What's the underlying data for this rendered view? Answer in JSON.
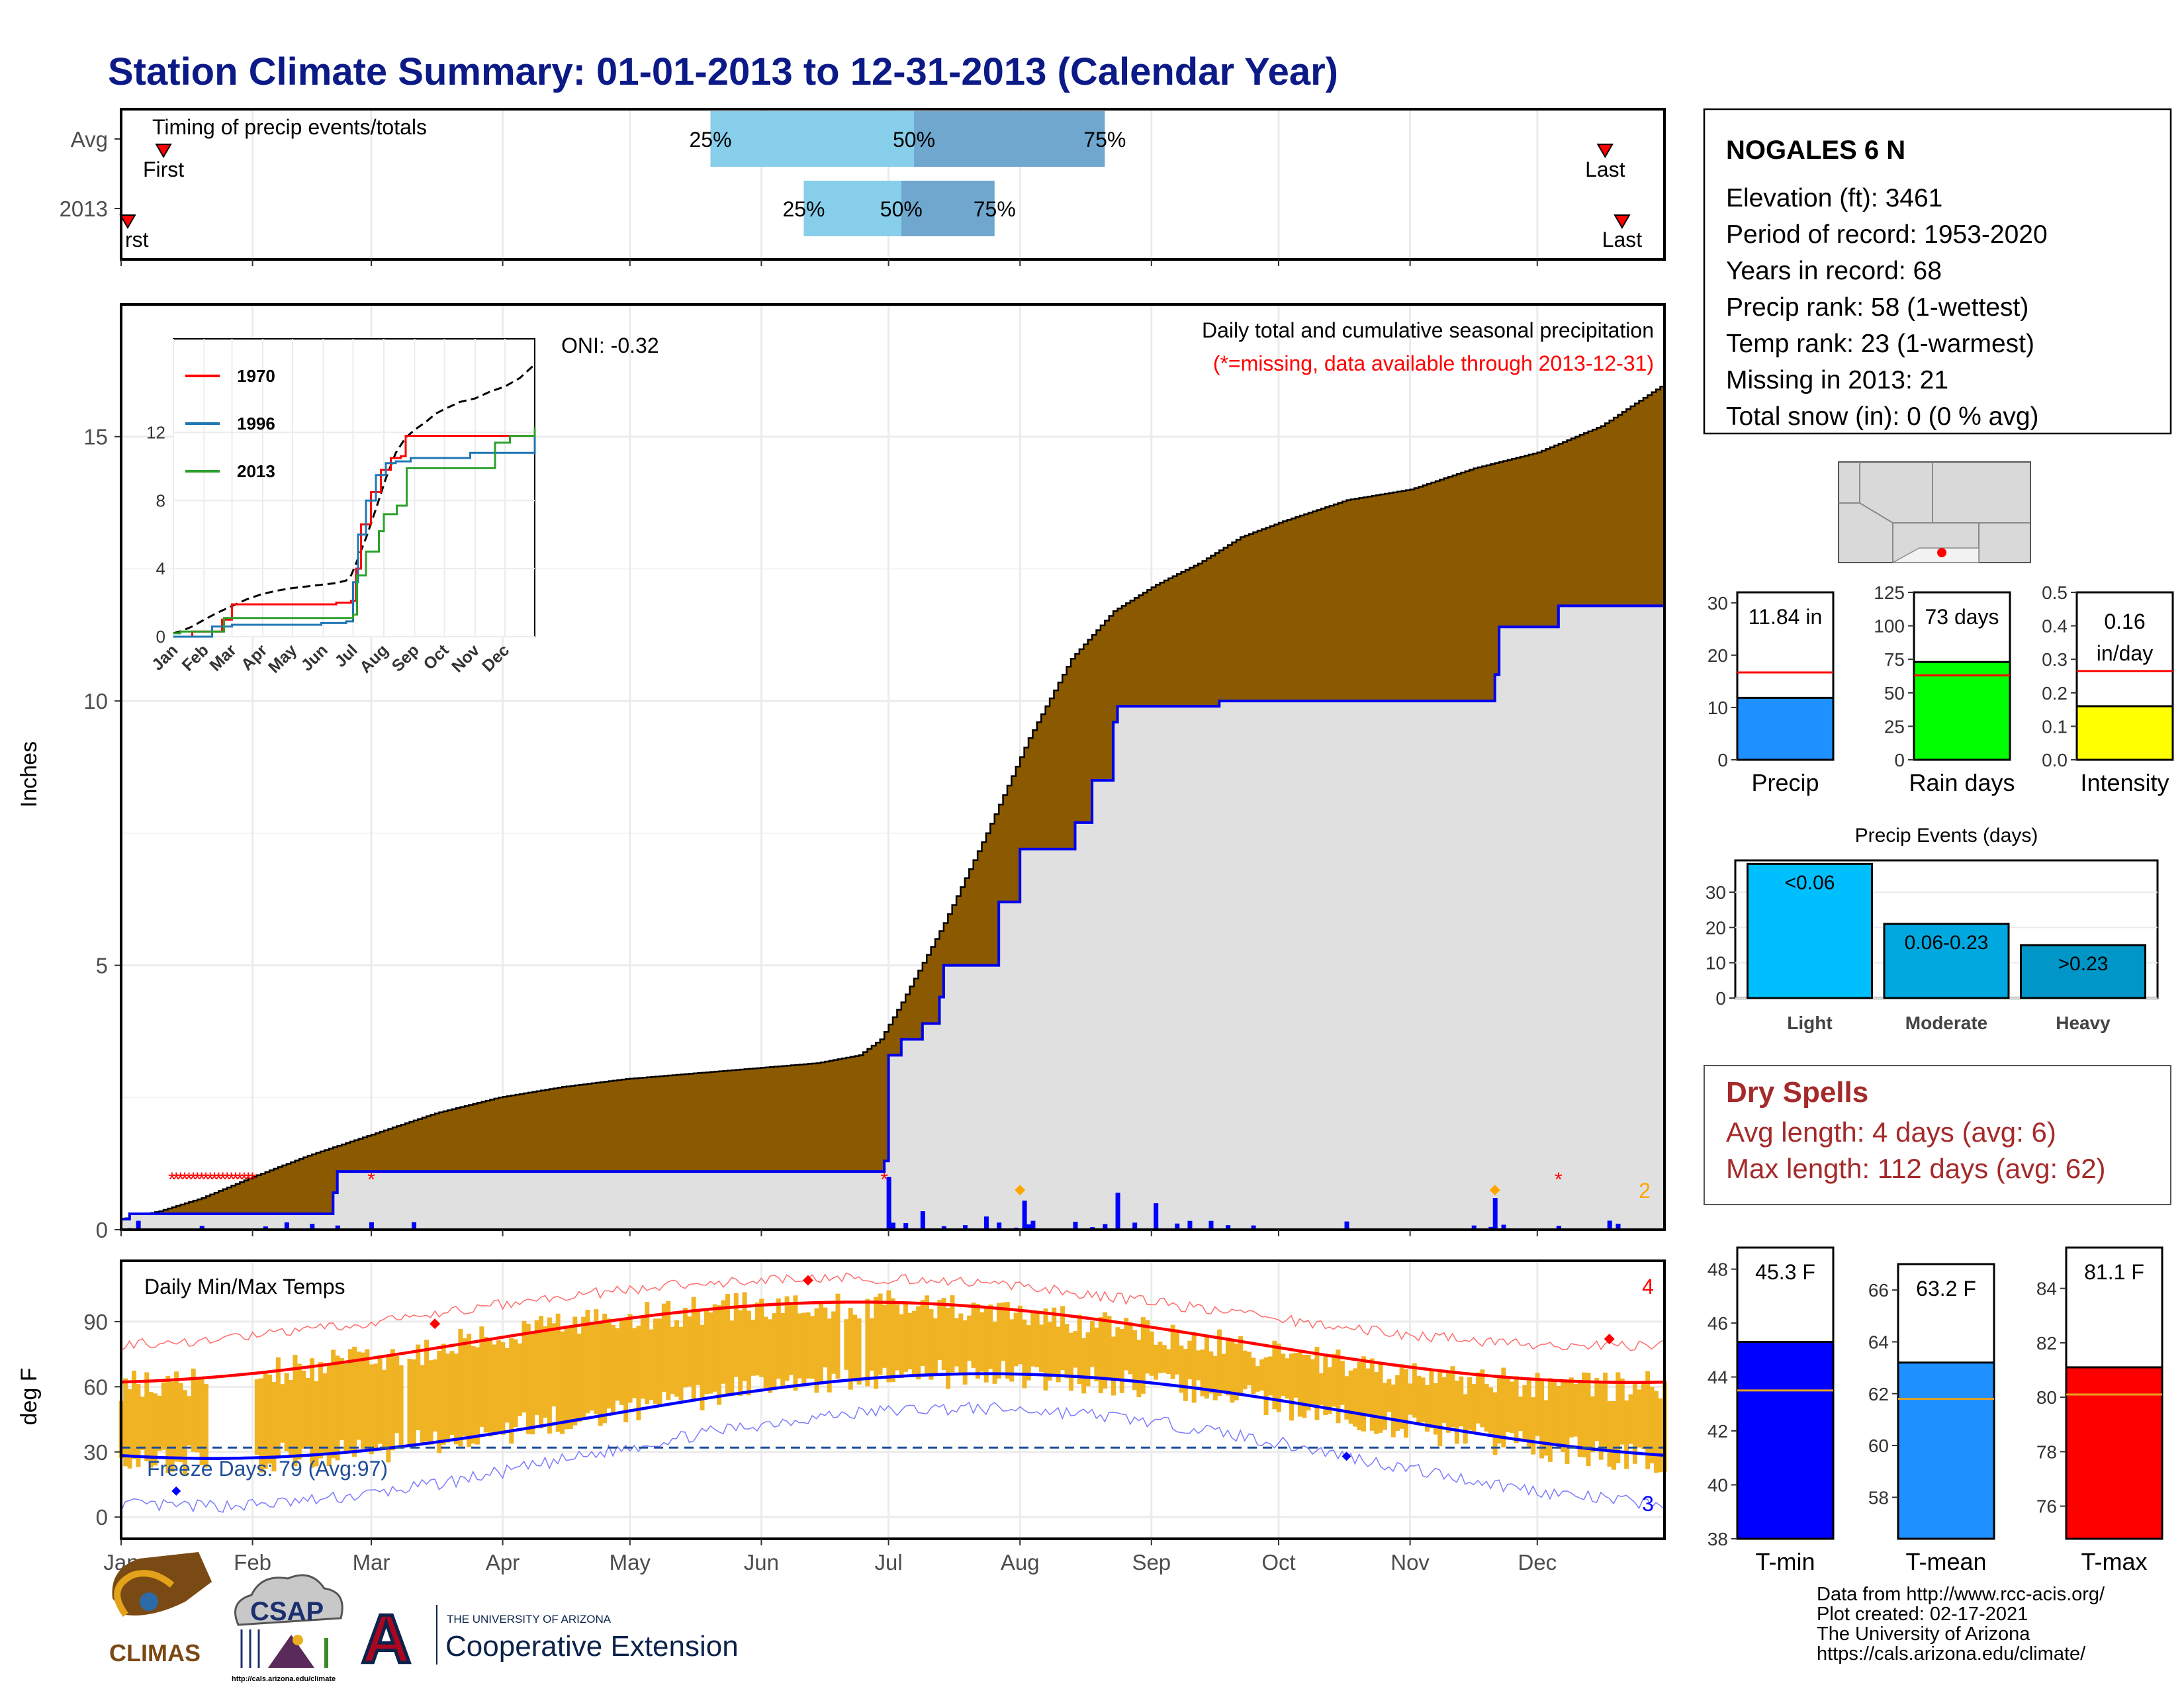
{
  "title": "Station Climate Summary: 01-01-2013 to 12-31-2013 (Calendar Year)",
  "months": [
    "Jan",
    "Feb",
    "Mar",
    "Apr",
    "May",
    "Jun",
    "Jul",
    "Aug",
    "Sep",
    "Oct",
    "Nov",
    "Dec"
  ],
  "timing_panel": {
    "label": "Timing of precip events/totals",
    "rows": [
      "Avg",
      "2013"
    ],
    "first_label": "First",
    "first_label_cut": "rst",
    "last_label": "Last",
    "pct_labels": [
      "25%",
      "50%",
      "75%"
    ]
  },
  "precip_panel": {
    "ylabel": "Inches",
    "yticks": [
      "0",
      "5",
      "10",
      "15"
    ],
    "caption1": "Daily total and cumulative seasonal precipitation",
    "caption2": "(*=missing, data available through 2013-12-31)",
    "oni": "ONI: -0.32",
    "corner_count": "2",
    "inset": {
      "legend": [
        "1970",
        "1996",
        "2013"
      ],
      "yticks": [
        "0",
        "4",
        "8",
        "12"
      ],
      "xticks": [
        "Jan",
        "Feb",
        "Mar",
        "Apr",
        "May",
        "Jun",
        "Jul",
        "Aug",
        "Sep",
        "Oct",
        "Nov",
        "Dec"
      ]
    }
  },
  "temp_panel": {
    "ylabel": "deg F",
    "title": "Daily Min/Max Temps",
    "yticks": [
      "0",
      "30",
      "60",
      "90"
    ],
    "freeze": "Freeze Days: 79 (Avg:97)",
    "top_count": "4",
    "bottom_count": "3"
  },
  "station": {
    "name": "NOGALES 6 N",
    "lines": [
      "Elevation (ft): 3461",
      "Period of record: 1953-2020",
      "Years in record: 68",
      "Precip rank: 58 (1-wettest)",
      "Temp rank: 23 (1-warmest)",
      "Missing in 2013: 21",
      "Total snow (in): 0 (0 % avg)"
    ]
  },
  "mini_bars": [
    {
      "label": "Precip",
      "value_text": "11.84 in",
      "value": 11.84,
      "avg": 16.7,
      "ymax": 32,
      "ticks": [
        "0",
        "10",
        "20",
        "30"
      ],
      "tick_values": [
        0,
        10,
        20,
        30
      ],
      "color": "#1e90ff"
    },
    {
      "label": "Rain days",
      "value_text": "73 days",
      "value": 73,
      "avg": 63,
      "ymax": 125,
      "ticks": [
        "0",
        "25",
        "50",
        "75",
        "100",
        "125"
      ],
      "tick_values": [
        0,
        25,
        50,
        75,
        100,
        125
      ],
      "color": "#00ff00"
    },
    {
      "label": "Intensity",
      "value_text": "0.16",
      "value_text2": "in/day",
      "value": 0.16,
      "avg": 0.265,
      "ymax": 0.5,
      "ticks": [
        "0.0",
        "0.1",
        "0.2",
        "0.3",
        "0.4",
        "0.5"
      ],
      "tick_values": [
        0,
        0.1,
        0.2,
        0.3,
        0.4,
        0.5
      ],
      "color": "#ffff00"
    }
  ],
  "events": {
    "title": "Precip Events (days)",
    "yticks": [
      "0",
      "10",
      "20",
      "30"
    ],
    "bars": [
      {
        "label": "Light",
        "bar_text": "<0.06",
        "value": 38,
        "color": "#00bfff"
      },
      {
        "label": "Moderate",
        "bar_text": "0.06-0.23",
        "value": 21,
        "color": "#00a8e0"
      },
      {
        "label": "Heavy",
        "bar_text": ">0.23",
        "value": 15,
        "color": "#0096c7"
      }
    ]
  },
  "dry_spells": {
    "title": "Dry Spells",
    "avg_line": "Avg length: 4 days (avg: 6)",
    "max_line": "Max length: 112 days (avg: 62)"
  },
  "temp_bars": [
    {
      "label": "T-min",
      "value_text": "45.3 F",
      "value": 45.3,
      "avg": 43.5,
      "ymin": 38,
      "ymax": 48.8,
      "ticks": [
        "38",
        "40",
        "42",
        "44",
        "46",
        "48"
      ],
      "tick_values": [
        38,
        40,
        42,
        44,
        46,
        48
      ],
      "color": "#0000ff"
    },
    {
      "label": "T-mean",
      "value_text": "63.2 F",
      "value": 63.2,
      "avg": 61.8,
      "ymin": 56.4,
      "ymax": 67,
      "ticks": [
        "58",
        "60",
        "62",
        "64",
        "66"
      ],
      "tick_values": [
        58,
        60,
        62,
        64,
        66
      ],
      "color": "#1e90ff"
    },
    {
      "label": "T-max",
      "value_text": "81.1 F",
      "value": 81.1,
      "avg": 80.1,
      "ymin": 74.8,
      "ymax": 85.5,
      "ticks": [
        "76",
        "78",
        "80",
        "82",
        "84"
      ],
      "tick_values": [
        76,
        78,
        80,
        82,
        84
      ],
      "color": "#ff0000"
    }
  ],
  "logos": {
    "climas": "CLIMAS",
    "csap": "CSAP",
    "csap_url": "http://cals.arizona.edu/climate",
    "ua_small": "THE UNIVERSITY OF ARIZONA",
    "ua_big": "Cooperative Extension",
    "ua_letter": "A"
  },
  "credits": [
    "Data from http://www.rcc-acis.org/",
    "Plot created: 02-17-2021",
    "The University of Arizona",
    "https://cals.arizona.edu/climate/"
  ],
  "chart_data": {
    "type": "area",
    "title": "Station Climate Summary: 01-01-2013 to 12-31-2013 (Calendar Year)",
    "ylabel": "Inches",
    "ylim": [
      0,
      17.5
    ],
    "x_unit": "day of year",
    "series": [
      {
        "name": "",
        "x": [
          1,
          10,
          20,
          32,
          45,
          60,
          75,
          90,
          105,
          120,
          135,
          150,
          165,
          175,
          180,
          185,
          195,
          205,
          215,
          225,
          235,
          245,
          255,
          265,
          275,
          290,
          305,
          320,
          335,
          350,
          365
        ],
        "values": [
          0.2,
          0.35,
          0.6,
          1.0,
          1.4,
          1.8,
          2.2,
          2.5,
          2.7,
          2.85,
          2.95,
          3.05,
          3.15,
          3.3,
          3.6,
          4.3,
          5.8,
          7.5,
          9.3,
          10.8,
          11.7,
          12.2,
          12.6,
          13.1,
          13.4,
          13.8,
          14.0,
          14.4,
          14.7,
          15.2,
          16.0
        ]
      },
      {
        "name": "",
        "x": [
          1,
          3,
          8,
          50,
          51,
          52,
          167,
          169,
          181,
          182,
          185,
          190,
          194,
          195,
          206,
          208,
          212,
          213,
          226,
          230,
          235,
          236,
          251,
          260,
          270,
          290,
          320,
          325,
          326,
          328,
          340,
          365
        ],
        "values": [
          0.2,
          0.3,
          0.3,
          0.3,
          0.7,
          1.1,
          1.1,
          1.1,
          1.3,
          3.3,
          3.6,
          3.9,
          4.4,
          5.0,
          5.0,
          6.2,
          6.2,
          7.2,
          7.7,
          8.5,
          9.6,
          9.9,
          9.9,
          10.0,
          10.0,
          10.0,
          10.0,
          10.5,
          11.4,
          11.4,
          11.8,
          11.84
        ]
      }
    ]
  }
}
